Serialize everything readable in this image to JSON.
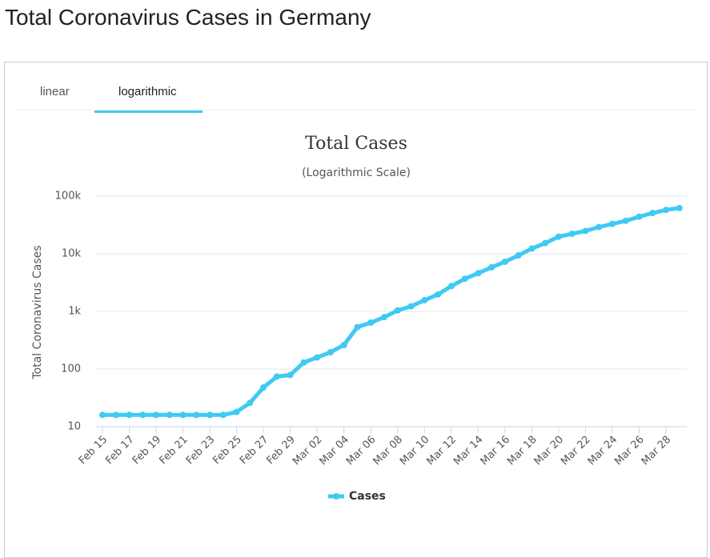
{
  "page_title": "Total Coronavirus Cases in Germany",
  "tabs": [
    "linear",
    "logarithmic"
  ],
  "chart_data": {
    "type": "line",
    "title": "Total Cases",
    "subtitle": "(Logarithmic Scale)",
    "y_label": "Total Coronavirus Cases",
    "categories": [
      "Feb 15",
      null,
      "Feb 17",
      null,
      "Feb 19",
      null,
      "Feb 21",
      null,
      "Feb 23",
      null,
      "Feb 25",
      null,
      "Feb 27",
      null,
      "Feb 29",
      null,
      "Mar 02",
      null,
      "Mar 04",
      null,
      "Mar 06",
      null,
      "Mar 08",
      null,
      "Mar 10",
      null,
      "Mar 12",
      null,
      "Mar 14",
      null,
      "Mar 16",
      null,
      "Mar 18",
      null,
      "Mar 20",
      null,
      "Mar 22",
      null,
      "Mar 24",
      null,
      "Mar 26",
      null,
      "Mar 28",
      null
    ],
    "series": [
      {
        "name": "Cases",
        "color": "#3fcaf2",
        "values": [
          16,
          16,
          16,
          16,
          16,
          16,
          16,
          16,
          16,
          16,
          18,
          26,
          48,
          74,
          79,
          130,
          159,
          196,
          262,
          534,
          639,
          795,
          1040,
          1224,
          1565,
          1966,
          2745,
          3675,
          4599,
          5813,
          7272,
          9367,
          12327,
          15320,
          19848,
          22213,
          24873,
          29056,
          32986,
          37323,
          43938,
          50871,
          57695,
          62095
        ]
      }
    ],
    "ylim": [
      10,
      100000
    ],
    "yticks": [
      10,
      100,
      {
        "value": 1000,
        "label": "1k"
      },
      {
        "value": 10000,
        "label": "10k"
      },
      {
        "value": 100000,
        "label": "100k"
      }
    ],
    "log_scale": true,
    "grid": true,
    "legend": "bottom"
  }
}
